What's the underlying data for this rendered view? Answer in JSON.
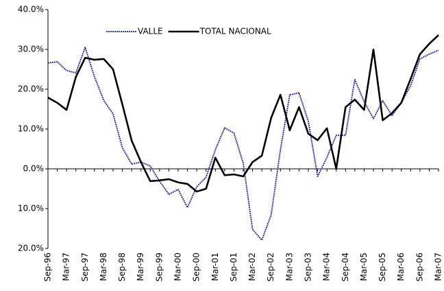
{
  "chart_data": {
    "type": "line",
    "categories": [
      "Sep-96",
      null,
      "Mar-97",
      null,
      "Sep-97",
      null,
      "Mar-98",
      null,
      "Sep-98",
      null,
      "Mar-99",
      null,
      "Sep-99",
      null,
      "Mar-00",
      null,
      "Sep-00",
      null,
      "Mar-01",
      null,
      "Sep-01",
      null,
      "Mar-02",
      null,
      "Sep-02",
      null,
      "Mar-03",
      null,
      "Sep-03",
      null,
      "Mar-04",
      null,
      "Sep-04",
      null,
      "Mar-05",
      null,
      "Sep-05",
      null,
      "Mar-06",
      null,
      "Sep-06",
      null,
      "Mar-07"
    ],
    "series": [
      {
        "name": "VALLE",
        "color": "#333399",
        "values": [
          26.6,
          26.9,
          24.7,
          24.1,
          30.5,
          23.1,
          17.2,
          13.8,
          5.3,
          1.2,
          1.7,
          0.7,
          -3.1,
          -6.4,
          -5.2,
          -9.7,
          -4.5,
          -2.1,
          4.8,
          10.3,
          9.0,
          1.4,
          -15.2,
          -17.9,
          -11.6,
          4.8,
          18.6,
          19.1,
          11.9,
          -1.9,
          2.9,
          8.4,
          8.4,
          22.4,
          16.9,
          12.6,
          17.1,
          13.4,
          16.6,
          20.9,
          27.6,
          28.8,
          29.8
        ]
      },
      {
        "name": "TOTAL NACIONAL",
        "color": "#000000",
        "values": [
          17.9,
          16.6,
          14.8,
          23.1,
          27.9,
          27.4,
          27.6,
          25.0,
          16.2,
          7.1,
          1.7,
          -3.1,
          -2.9,
          -2.6,
          -3.4,
          -3.8,
          -5.7,
          -5.0,
          2.8,
          -1.6,
          -1.4,
          -1.9,
          1.7,
          3.3,
          12.8,
          18.6,
          9.7,
          15.5,
          8.8,
          7.2,
          10.2,
          0.0,
          15.5,
          17.4,
          14.8,
          30.0,
          12.2,
          14.0,
          16.6,
          22.6,
          28.8,
          31.4,
          33.6
        ]
      }
    ],
    "ylim": [
      -20,
      40
    ],
    "yticks": [
      {
        "value": -20,
        "label": "20.0%"
      },
      {
        "value": -10,
        "label": "10.0%"
      },
      {
        "value": 0,
        "label": "0.0%"
      },
      {
        "value": 10,
        "label": "10.0%"
      },
      {
        "value": 20,
        "label": "20.0%"
      },
      {
        "value": 30,
        "label": "30.0%"
      },
      {
        "value": 40,
        "label": "40.0%"
      }
    ],
    "grid": false
  }
}
